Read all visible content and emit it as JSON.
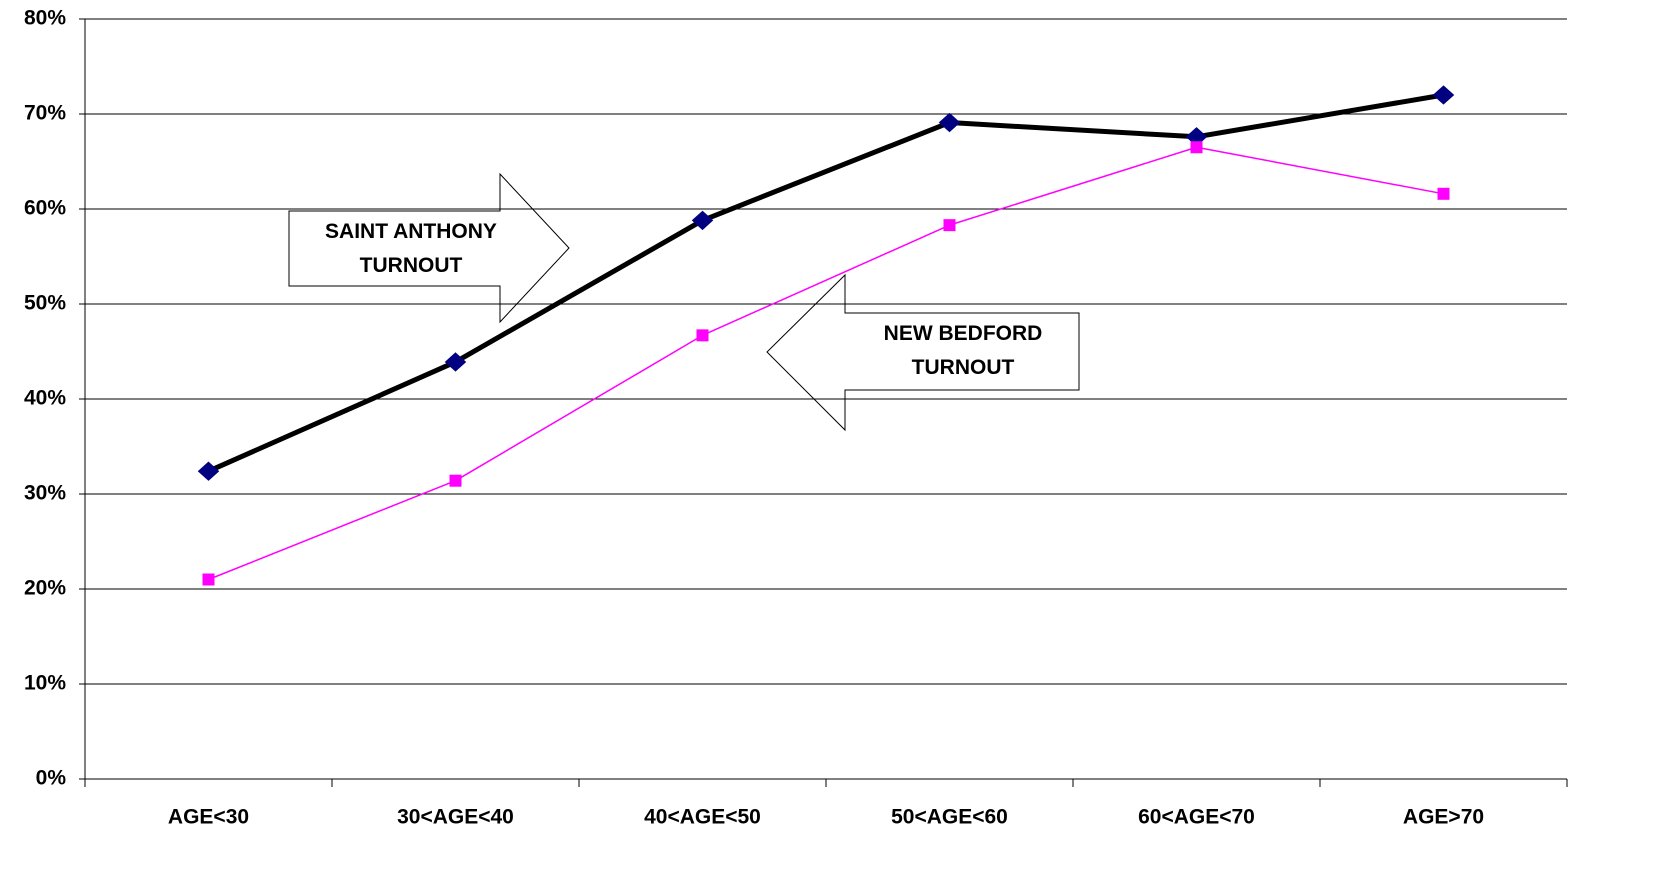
{
  "chart_data": {
    "type": "line",
    "categories": [
      "AGE<30",
      "30<AGE<40",
      "40<AGE<50",
      "50<AGE<60",
      "60<AGE<70",
      "AGE>70"
    ],
    "series": [
      {
        "name": "SAINT ANTHONY TURNOUT",
        "color": "#000000",
        "marker_color": "#000080",
        "marker": "diamond",
        "values": [
          32.4,
          43.9,
          58.8,
          69.1,
          67.6,
          72.0
        ]
      },
      {
        "name": "NEW BEDFORD TURNOUT",
        "color": "#ff00ff",
        "marker_color": "#ff00ff",
        "marker": "square",
        "values": [
          21.0,
          31.4,
          46.7,
          58.3,
          66.5,
          61.6
        ]
      }
    ],
    "ylim": [
      0,
      80
    ],
    "yticks": [
      {
        "value": 0,
        "label": "0%"
      },
      {
        "value": 10,
        "label": "10%"
      },
      {
        "value": 20,
        "label": "20%"
      },
      {
        "value": 30,
        "label": "30%"
      },
      {
        "value": 40,
        "label": "40%"
      },
      {
        "value": 50,
        "label": "50%"
      },
      {
        "value": 60,
        "label": "60%"
      },
      {
        "value": 70,
        "label": "70%"
      },
      {
        "value": 80,
        "label": "80%"
      }
    ],
    "grid": true
  }
}
